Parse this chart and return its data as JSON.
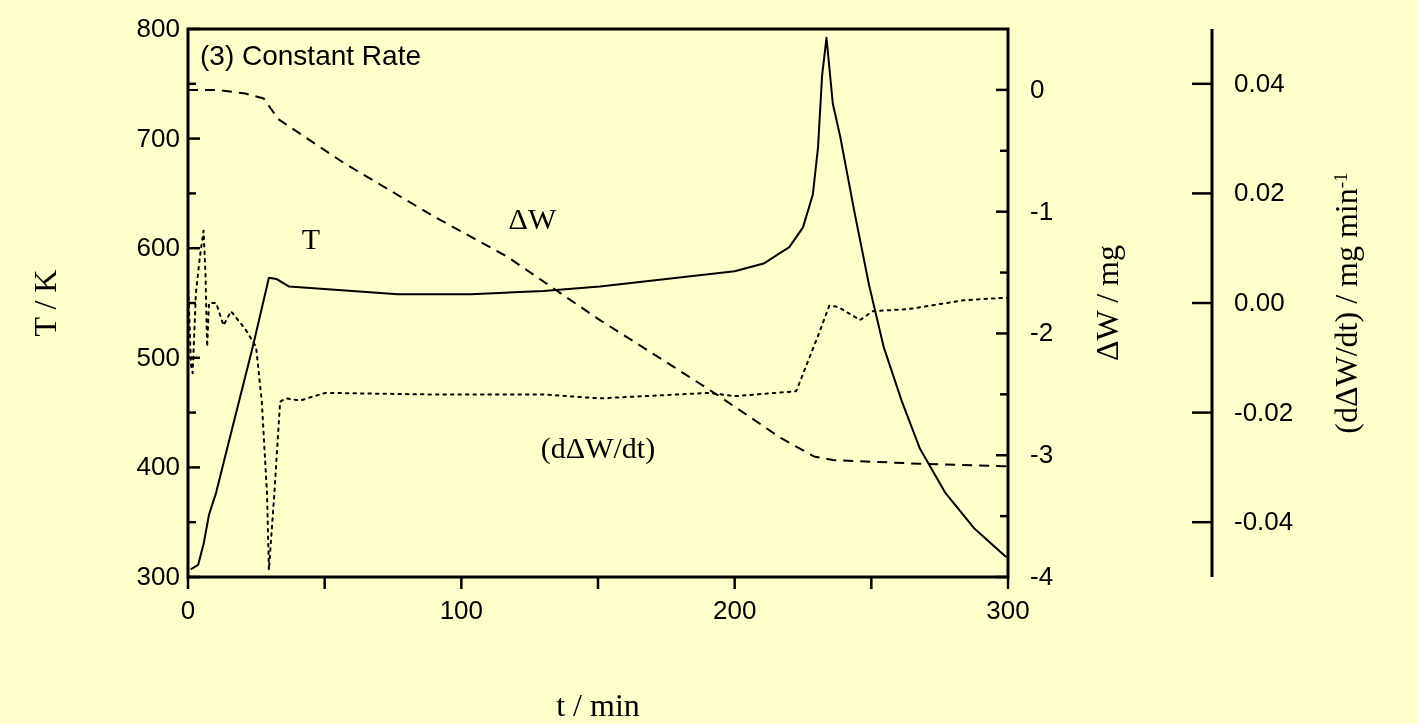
{
  "chart_data": {
    "type": "line",
    "title": "(3) Constant Rate",
    "xlabel": "t / min",
    "ylabel": "T / K",
    "y2label": "ΔW / mg",
    "y3label": "(dΔW/dt) / mg min$^{-1}$",
    "xlim": [
      0,
      300
    ],
    "xticks": [
      0,
      {
        "value": 50,
        "label": null
      },
      100,
      {
        "value": 150,
        "label": null
      },
      200,
      {
        "value": 250,
        "label": null
      },
      300
    ],
    "ylim": [
      300,
      800
    ],
    "yticks": [
      300,
      {
        "value": 350,
        "label": null
      },
      400,
      {
        "value": 450,
        "label": null
      },
      500,
      {
        "value": 550,
        "label": null
      },
      600,
      {
        "value": 650,
        "label": null
      },
      700,
      {
        "value": 750,
        "label": null
      },
      800
    ],
    "y2lim": [
      -4,
      0.5
    ],
    "y2ticks": [
      -4,
      {
        "value": -3.5,
        "label": null
      },
      -3,
      {
        "value": -2.5,
        "label": null
      },
      -2,
      {
        "value": -1.5,
        "label": null
      },
      -1,
      {
        "value": -0.5,
        "label": null
      },
      0
    ],
    "y3lim": [
      -0.05,
      0.05
    ],
    "y3ticks": [
      {
        "value": -0.04,
        "label": "-0.04"
      },
      {
        "value": -0.02,
        "label": "-0.02"
      },
      {
        "value": 0,
        "label": "0.00"
      },
      {
        "value": 0.02,
        "label": "0.02"
      },
      {
        "value": 0.04,
        "label": "0.04"
      }
    ],
    "series": [
      {
        "name": "T",
        "color": "#000000",
        "line_style": "solid",
        "x": [
          1,
          3.7,
          5.7,
          7.7,
          10.3,
          14.3,
          23.7,
          29.6,
          32.3,
          37,
          76.8,
          103.5,
          130,
          150.7,
          200,
          210.6,
          220,
          225,
          228.6,
          230.5,
          232,
          233.6,
          235.9,
          238.6,
          243.9,
          249.2,
          254.5,
          261.2,
          267.8,
          277,
          287.8,
          299,
          300
        ],
        "values": [
          307,
          311,
          330,
          357,
          377,
          417,
          510,
          573,
          572,
          565,
          558,
          558,
          561,
          565,
          579,
          586,
          601,
          619,
          649,
          692,
          758,
          792,
          732,
          702,
          632,
          566,
          510,
          460,
          417,
          377,
          344,
          319,
          318
        ]
      },
      {
        "name": "ΔW",
        "color": "#000000",
        "line_style": "dashed",
        "axis": "y2",
        "x": [
          0,
          10.3,
          21,
          27.7,
          33,
          57,
          90,
          116.8,
          150,
          177.4,
          193.3,
          217,
          229,
          235.9,
          267.8,
          298.4,
          300
        ],
        "values": [
          0,
          0,
          -0.03,
          -0.07,
          -0.24,
          -0.6,
          -1.04,
          -1.37,
          -1.88,
          -2.27,
          -2.5,
          -2.86,
          -3.01,
          -3.04,
          -3.07,
          -3.09,
          -3.09
        ]
      },
      {
        "name": "(dΔW/dt)",
        "color": "#000000",
        "line_style": "dotted",
        "axis": "y3",
        "x": [
          0,
          1.1,
          1.7,
          2.9,
          4.4,
          5.7,
          6.4,
          7,
          7.7,
          10.3,
          13,
          15.7,
          21,
          24.9,
          27,
          28.9,
          29.6,
          31.6,
          33.7,
          35.7,
          41,
          50.3,
          90,
          130,
          150.7,
          190.6,
          200,
          222.5,
          230.5,
          234.6,
          237.8,
          245.9,
          250.5,
          263.8,
          283.8,
          297,
          300
        ],
        "values": [
          0.0038,
          -0.0113,
          -0.0128,
          0.0019,
          0.0086,
          0.0132,
          0.0052,
          -0.008,
          0,
          0,
          -0.0041,
          -0.0015,
          -0.0048,
          -0.008,
          -0.018,
          -0.0347,
          -0.0487,
          -0.0347,
          -0.018,
          -0.0174,
          -0.0178,
          -0.0164,
          -0.0167,
          -0.0167,
          -0.0174,
          -0.0164,
          -0.017,
          -0.0161,
          -0.006,
          -0.0005,
          -0.0007,
          -0.0031,
          -0.0015,
          -0.0011,
          0.0005,
          0.0009,
          0.0009
        ]
      }
    ]
  }
}
